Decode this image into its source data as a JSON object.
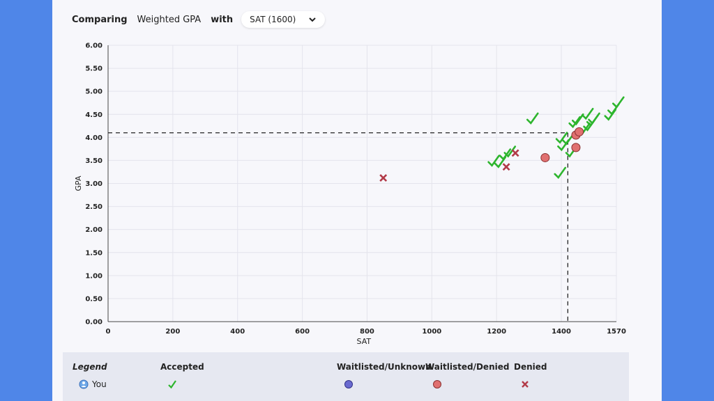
{
  "header": {
    "comparing_label": "Comparing",
    "metric_label": "Weighted GPA",
    "with_label": "with",
    "selected_test": "SAT (1600)"
  },
  "colors": {
    "background": "#4f86e8",
    "panel": "#f7f7fb",
    "accepted": "#2db52d",
    "denied": "#b23a48",
    "waitlisted_denied_fill": "#e07070",
    "waitlisted_unknown_fill": "#6a6ad0"
  },
  "chart_data": {
    "type": "scatter",
    "xlabel": "SAT",
    "ylabel": "GPA",
    "xlim": [
      0,
      1570
    ],
    "ylim": [
      0,
      6
    ],
    "x_ticks": [
      "0",
      "200",
      "400",
      "600",
      "800",
      "1000",
      "1200",
      "1400",
      "1570"
    ],
    "y_ticks": [
      "0.00",
      "0.50",
      "1.00",
      "1.50",
      "2.00",
      "2.50",
      "3.00",
      "3.50",
      "4.00",
      "4.50",
      "5.00",
      "5.50",
      "6.00"
    ],
    "grid": true,
    "reference": {
      "sat": 1420,
      "gpa": 4.1
    },
    "series": [
      {
        "name": "Accepted",
        "marker": "check",
        "points": [
          [
            1190,
            3.48
          ],
          [
            1210,
            3.45
          ],
          [
            1225,
            3.62
          ],
          [
            1240,
            3.68
          ],
          [
            1310,
            4.4
          ],
          [
            1395,
            3.22
          ],
          [
            1400,
            3.98
          ],
          [
            1405,
            3.82
          ],
          [
            1420,
            3.95
          ],
          [
            1430,
            3.68
          ],
          [
            1440,
            4.32
          ],
          [
            1450,
            4.38
          ],
          [
            1470,
            4.18
          ],
          [
            1480,
            4.5
          ],
          [
            1485,
            4.25
          ],
          [
            1495,
            4.35
          ],
          [
            1500,
            4.4
          ],
          [
            1550,
            4.48
          ],
          [
            1560,
            4.6
          ],
          [
            1575,
            4.75
          ]
        ]
      },
      {
        "name": "Waitlisted/Denied",
        "marker": "circle",
        "points": [
          [
            1350,
            3.56
          ],
          [
            1445,
            3.78
          ],
          [
            1445,
            4.05
          ],
          [
            1455,
            4.12
          ]
        ]
      },
      {
        "name": "Denied",
        "marker": "x",
        "points": [
          [
            850,
            3.12
          ],
          [
            1230,
            3.36
          ],
          [
            1258,
            3.66
          ]
        ]
      }
    ]
  },
  "legend": {
    "title": "Legend",
    "you_label": "You",
    "accepted": "Accepted",
    "waitlisted_unknown": "Waitlisted/Unknown",
    "waitlisted_denied": "Waitlisted/Denied",
    "denied": "Denied"
  }
}
